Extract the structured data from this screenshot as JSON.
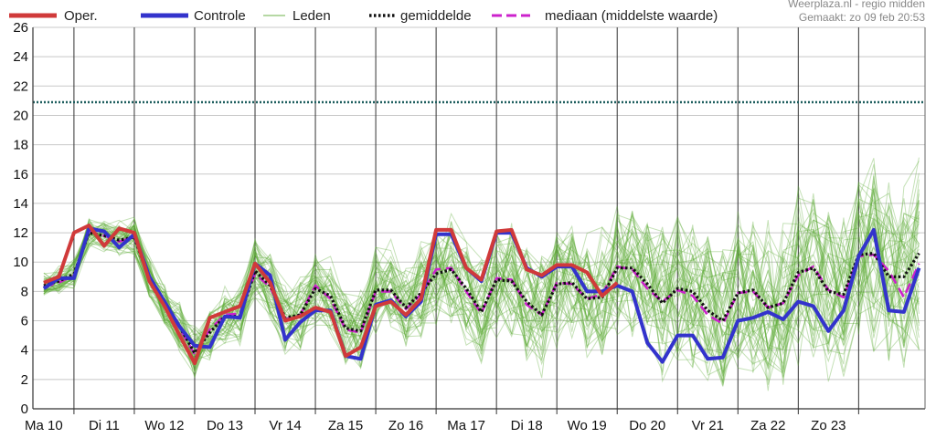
{
  "credit": {
    "site": "Weerplaza.nl - regio midden",
    "created": "Gemaakt: zo 09 feb 20:53"
  },
  "legend": {
    "oper": "Oper.",
    "controle": "Controle",
    "leden": "Leden",
    "gemiddelde": "gemiddelde",
    "mediaan": "mediaan (middelste waarde)"
  },
  "colors": {
    "oper": "#d03a3a",
    "controle": "#3333cc",
    "leden": "#5aa832",
    "gemiddelde": "#111111",
    "mediaan": "#cc22cc",
    "reference": "#1f5f5f",
    "daygrid": "#333333",
    "hgrid": "#c8c8c8"
  },
  "chart_data": {
    "type": "line",
    "xlabel": "",
    "ylabel": "",
    "ylim": [
      0,
      26
    ],
    "yticks": [
      0,
      2,
      4,
      6,
      8,
      10,
      12,
      14,
      16,
      18,
      20,
      22,
      24,
      26
    ],
    "days": [
      "Ma 10",
      "Di 11",
      "Wo 12",
      "Do 13",
      "Vr 14",
      "Za 15",
      "Zo 16",
      "Ma 17",
      "Di 18",
      "Wo 19",
      "Do 20",
      "Vr 21",
      "Za 22",
      "Zo 23"
    ],
    "xlim": [
      -0.18,
      14.6
    ],
    "reference_line": 20.9,
    "legend_position": "top",
    "x": [
      0,
      0.25,
      0.5,
      0.75,
      1,
      1.25,
      1.5,
      1.75,
      2,
      2.25,
      2.5,
      2.75,
      3,
      3.25,
      3.5,
      3.75,
      4,
      4.25,
      4.5,
      4.75,
      5,
      5.25,
      5.5,
      5.75,
      6,
      6.25,
      6.5,
      6.75,
      7,
      7.25,
      7.5,
      7.75,
      8,
      8.25,
      8.5,
      8.75,
      9,
      9.25,
      9.5,
      9.75,
      10,
      10.25,
      10.5,
      10.75,
      11,
      11.25,
      11.5,
      11.75,
      12,
      12.25,
      12.5,
      12.75,
      13,
      13.25,
      13.5,
      13.75,
      14,
      14.25,
      14.5
    ],
    "series": [
      {
        "name": "Oper.",
        "x": [
          0,
          0.25,
          0.5,
          0.75,
          1,
          1.25,
          1.5,
          1.75,
          2,
          2.25,
          2.5,
          2.75,
          3,
          3.25,
          3.5,
          3.75,
          4,
          4.25,
          4.5,
          4.75,
          5,
          5.25,
          5.5,
          5.75,
          6,
          6.25,
          6.5,
          6.75,
          7,
          7.25,
          7.5,
          7.75,
          8,
          8.25,
          8.5,
          8.75,
          9,
          9.25,
          9.5
        ],
        "values": [
          8.6,
          9.0,
          12.0,
          12.5,
          11.1,
          12.3,
          12.0,
          8.7,
          7.0,
          5.0,
          3.1,
          6.2,
          6.6,
          7.0,
          9.9,
          8.6,
          6.0,
          6.3,
          6.9,
          6.6,
          3.6,
          4.2,
          7.0,
          7.3,
          6.4,
          7.5,
          12.2,
          12.2,
          9.6,
          8.8,
          12.1,
          12.2,
          9.5,
          9.1,
          9.8,
          9.8,
          9.3,
          7.7,
          8.6
        ]
      },
      {
        "name": "Controle",
        "x": [
          0,
          0.25,
          0.5,
          0.75,
          1,
          1.25,
          1.5,
          1.75,
          2,
          2.25,
          2.5,
          2.75,
          3,
          3.25,
          3.5,
          3.75,
          4,
          4.25,
          4.5,
          4.75,
          5,
          5.25,
          5.5,
          5.75,
          6,
          6.25,
          6.5,
          6.75,
          7,
          7.25,
          7.5,
          7.75,
          8,
          8.25,
          8.5,
          8.75,
          9,
          9.25,
          9.5,
          9.75,
          10,
          10.25,
          10.5,
          10.75,
          11,
          11.25,
          11.5,
          11.75,
          12,
          12.25,
          12.5,
          12.75,
          13,
          13.25,
          13.5,
          13.75,
          14,
          14.25,
          14.5
        ],
        "values": [
          8.2,
          8.9,
          8.9,
          12.3,
          12.1,
          11.0,
          11.9,
          9.0,
          7.3,
          5.6,
          4.3,
          4.2,
          6.3,
          6.2,
          9.9,
          9.1,
          4.7,
          5.9,
          6.7,
          6.7,
          3.6,
          3.4,
          7.1,
          7.4,
          6.3,
          7.3,
          11.9,
          11.9,
          9.6,
          8.7,
          12.0,
          12.0,
          9.6,
          9.0,
          9.7,
          9.7,
          8.0,
          8.0,
          8.4,
          8.0,
          4.5,
          3.2,
          5.0,
          5.0,
          3.4,
          3.5,
          6.0,
          6.2,
          6.6,
          6.1,
          7.3,
          7.0,
          5.3,
          6.7,
          10.4,
          12.2,
          6.7,
          6.6,
          9.6
        ]
      },
      {
        "name": "gemiddelde",
        "x": [
          0,
          0.25,
          0.5,
          0.75,
          1,
          1.25,
          1.5,
          1.75,
          2,
          2.25,
          2.5,
          2.75,
          3,
          3.25,
          3.5,
          3.75,
          4,
          4.25,
          4.5,
          4.75,
          5,
          5.25,
          5.5,
          5.75,
          6,
          6.25,
          6.5,
          6.75,
          7,
          7.25,
          7.5,
          7.75,
          8,
          8.25,
          8.5,
          8.75,
          9,
          9.25,
          9.5,
          9.75,
          10,
          10.25,
          10.5,
          10.75,
          11,
          11.25,
          11.5,
          11.75,
          12,
          12.25,
          12.5,
          12.75,
          13,
          13.25,
          13.5,
          13.75,
          14,
          14.25,
          14.5
        ],
        "values": [
          8.4,
          8.7,
          9.2,
          12.0,
          11.8,
          11.5,
          11.7,
          8.8,
          7.2,
          5.6,
          3.8,
          5.2,
          6.3,
          6.3,
          9.4,
          8.4,
          6.2,
          6.4,
          8.2,
          7.7,
          5.5,
          5.3,
          8.1,
          8.1,
          6.9,
          7.9,
          9.2,
          9.5,
          8.2,
          6.6,
          8.8,
          8.7,
          7.3,
          6.4,
          8.5,
          8.6,
          7.5,
          7.6,
          9.6,
          9.6,
          8.5,
          7.2,
          8.2,
          8.0,
          6.7,
          6.0,
          7.9,
          8.1,
          6.9,
          7.2,
          9.3,
          9.6,
          8.0,
          7.8,
          10.5,
          10.6,
          9.0,
          9.0,
          10.6
        ]
      },
      {
        "name": "mediaan (middelste waarde)",
        "x": [
          0,
          0.25,
          0.5,
          0.75,
          1,
          1.25,
          1.5,
          1.75,
          2,
          2.25,
          2.5,
          2.75,
          3,
          3.25,
          3.5,
          3.75,
          4,
          4.25,
          4.5,
          4.75,
          5,
          5.25,
          5.5,
          5.75,
          6,
          6.25,
          6.5,
          6.75,
          7,
          7.25,
          7.5,
          7.75,
          8,
          8.25,
          8.5,
          8.75,
          9,
          9.25,
          9.5,
          9.75,
          10,
          10.25,
          10.5,
          10.75,
          11,
          11.25,
          11.5,
          11.75,
          12,
          12.25,
          12.5,
          12.75,
          13,
          13.25,
          13.5,
          13.75,
          14,
          14.25,
          14.5
        ],
        "values": [
          8.3,
          8.6,
          9.1,
          12.1,
          11.8,
          11.4,
          11.7,
          8.9,
          7.1,
          5.5,
          3.7,
          5.4,
          6.4,
          6.5,
          9.2,
          8.3,
          6.1,
          6.4,
          8.4,
          7.5,
          5.4,
          5.2,
          8.0,
          8.0,
          6.8,
          7.8,
          9.5,
          9.6,
          8.0,
          6.5,
          8.9,
          8.8,
          7.1,
          6.4,
          8.6,
          8.5,
          7.5,
          7.8,
          9.7,
          9.5,
          8.2,
          7.3,
          8.1,
          7.7,
          6.4,
          5.8,
          7.9,
          8.0,
          6.9,
          7.2,
          9.1,
          9.7,
          8.1,
          7.6,
          10.4,
          10.5,
          9.4,
          7.6,
          9.9
        ]
      }
    ]
  }
}
